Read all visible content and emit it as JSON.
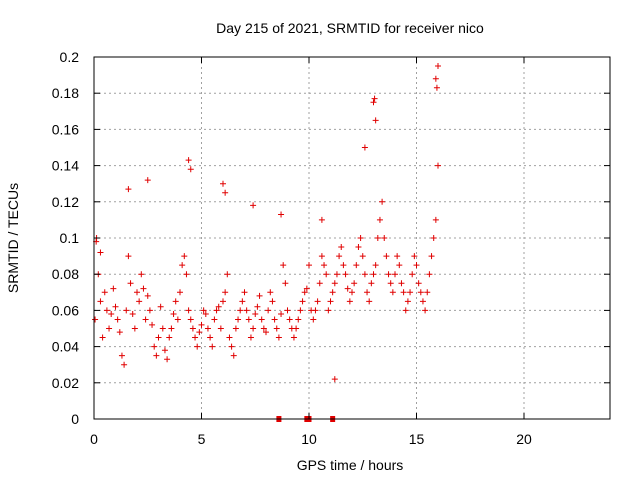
{
  "chart_data": {
    "type": "scatter",
    "title": "Day 215 of 2021, SRMTID for receiver nico",
    "xlabel": "GPS time / hours",
    "ylabel": "SRMTID / TECUs",
    "xlim": [
      0,
      24
    ],
    "ylim": [
      0,
      0.2
    ],
    "x_ticks": [
      0,
      5,
      10,
      15,
      20
    ],
    "y_ticks": [
      0,
      0.02,
      0.04,
      0.06,
      0.08,
      0.1,
      0.12,
      0.14,
      0.16,
      0.18,
      0.2
    ],
    "x_tick_labels": [
      "0",
      "5",
      "10",
      "15",
      "20"
    ],
    "y_tick_labels": [
      "0",
      "0.02",
      "0.04",
      "0.06",
      "0.08",
      "0.1",
      "0.12",
      "0.14",
      "0.16",
      "0.18",
      "0.2"
    ],
    "grid": true,
    "marker": "+",
    "color": "#e00000",
    "series": [
      {
        "x": [
          0.05,
          0.12,
          0.2,
          0.3,
          0.4,
          0.5,
          0.6,
          0.7,
          0.8,
          0.9,
          1.0,
          1.1,
          1.2,
          1.3,
          1.4,
          1.5,
          1.6,
          1.7,
          1.8,
          1.9,
          2.0,
          2.1,
          2.2,
          2.3,
          2.4,
          2.5,
          2.6,
          2.7,
          2.8,
          2.9,
          3.0,
          3.1,
          3.2,
          3.3,
          3.4,
          3.5,
          3.6,
          3.7,
          3.8,
          3.9,
          4.0,
          4.1,
          4.2,
          4.3,
          4.4,
          4.5,
          4.6,
          4.7,
          4.8,
          4.9,
          5.0,
          5.1,
          5.2,
          5.3,
          5.4,
          5.5,
          5.6,
          5.7,
          5.8,
          5.9,
          6.0,
          6.1,
          6.2,
          6.3,
          6.4,
          6.5,
          6.6,
          6.7,
          6.8,
          6.9,
          7.0,
          7.1,
          7.2,
          7.3,
          7.4,
          7.5,
          7.6,
          7.7,
          7.8,
          7.9,
          8.0,
          8.1,
          8.2,
          8.3,
          8.4,
          8.5,
          8.6,
          8.7,
          8.8,
          8.9,
          9.0,
          9.1,
          9.2,
          9.3,
          9.4,
          9.5,
          9.6,
          9.7,
          9.8,
          9.9,
          10.0,
          10.1,
          10.2,
          10.3,
          10.4,
          10.5,
          10.6,
          10.7,
          10.8,
          10.9,
          11.0,
          11.1,
          11.2,
          11.3,
          11.4,
          11.5,
          11.6,
          11.7,
          11.8,
          11.9,
          12.0,
          12.1,
          12.2,
          12.3,
          12.4,
          12.5,
          12.6,
          12.7,
          12.8,
          12.9,
          13.0,
          13.1,
          13.2,
          13.3,
          13.4,
          13.5,
          13.6,
          13.7,
          13.8,
          13.9,
          14.0,
          14.1,
          14.2,
          14.3,
          14.4,
          14.5,
          14.6,
          14.7,
          14.8,
          14.9,
          15.0,
          15.1,
          15.2,
          15.3,
          15.4,
          15.5,
          15.6,
          15.7,
          15.8,
          15.9,
          16.0,
          0.1,
          0.3,
          1.6,
          2.5,
          4.4,
          4.5,
          6.0,
          6.1,
          7.4,
          8.7,
          10.6,
          12.6,
          13.0,
          13.1,
          15.9,
          16.0,
          15.95,
          13.05,
          11.2
        ],
        "y": [
          0.055,
          0.1,
          0.08,
          0.065,
          0.045,
          0.07,
          0.06,
          0.05,
          0.058,
          0.072,
          0.062,
          0.055,
          0.048,
          0.035,
          0.03,
          0.06,
          0.09,
          0.075,
          0.058,
          0.05,
          0.07,
          0.065,
          0.08,
          0.072,
          0.055,
          0.068,
          0.06,
          0.052,
          0.04,
          0.035,
          0.045,
          0.062,
          0.05,
          0.038,
          0.033,
          0.045,
          0.05,
          0.058,
          0.065,
          0.055,
          0.07,
          0.085,
          0.09,
          0.08,
          0.06,
          0.055,
          0.05,
          0.045,
          0.04,
          0.048,
          0.052,
          0.06,
          0.058,
          0.05,
          0.045,
          0.04,
          0.055,
          0.06,
          0.062,
          0.05,
          0.065,
          0.07,
          0.08,
          0.045,
          0.04,
          0.035,
          0.05,
          0.055,
          0.06,
          0.065,
          0.07,
          0.06,
          0.055,
          0.045,
          0.05,
          0.058,
          0.062,
          0.068,
          0.055,
          0.05,
          0.048,
          0.06,
          0.07,
          0.065,
          0.055,
          0.05,
          0.045,
          0.058,
          0.085,
          0.075,
          0.06,
          0.055,
          0.05,
          0.045,
          0.05,
          0.055,
          0.06,
          0.065,
          0.07,
          0.072,
          0.085,
          0.06,
          0.055,
          0.06,
          0.065,
          0.075,
          0.09,
          0.085,
          0.08,
          0.06,
          0.065,
          0.07,
          0.075,
          0.08,
          0.09,
          0.095,
          0.085,
          0.08,
          0.072,
          0.065,
          0.07,
          0.075,
          0.085,
          0.095,
          0.1,
          0.09,
          0.08,
          0.07,
          0.065,
          0.075,
          0.08,
          0.085,
          0.1,
          0.11,
          0.12,
          0.1,
          0.09,
          0.08,
          0.075,
          0.07,
          0.08,
          0.09,
          0.085,
          0.075,
          0.07,
          0.06,
          0.065,
          0.07,
          0.08,
          0.09,
          0.085,
          0.075,
          0.07,
          0.065,
          0.06,
          0.07,
          0.08,
          0.09,
          0.1,
          0.11,
          0.14,
          0.098,
          0.092,
          0.127,
          0.132,
          0.143,
          0.138,
          0.13,
          0.125,
          0.118,
          0.113,
          0.11,
          0.15,
          0.175,
          0.165,
          0.188,
          0.195,
          0.183,
          0.177,
          0.022
        ]
      },
      {
        "name": "",
        "x": [
          8.6,
          9.9,
          10.0,
          11.1
        ],
        "y": [
          0,
          0,
          0,
          0
        ]
      }
    ]
  }
}
